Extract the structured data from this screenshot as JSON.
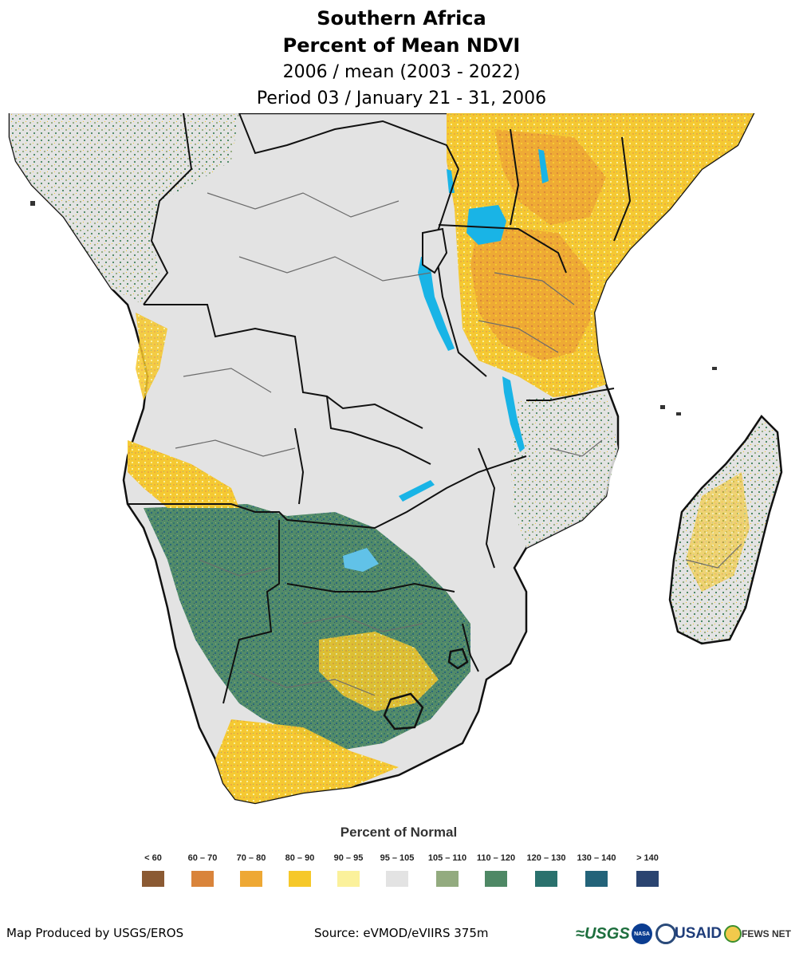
{
  "title": {
    "line1": "Southern Africa",
    "line2": "Percent of Mean NDVI",
    "line3": "2006 / mean (2003 - 2022)",
    "line4": "Period 03 / January 21 - 31, 2006"
  },
  "legend": {
    "title": "Percent of Normal",
    "items": [
      {
        "label": "< 60",
        "color": "#8b5a33"
      },
      {
        "label": "60 – 70",
        "color": "#d9843b"
      },
      {
        "label": "70 – 80",
        "color": "#eea834"
      },
      {
        "label": "80 – 90",
        "color": "#f6c829"
      },
      {
        "label": "90 – 95",
        "color": "#fbf19b"
      },
      {
        "label": "95 – 105",
        "color": "#e3e3e3"
      },
      {
        "label": "105 – 110",
        "color": "#93ab7f"
      },
      {
        "label": "110 – 120",
        "color": "#4e8865"
      },
      {
        "label": "120 – 130",
        "color": "#2a716d"
      },
      {
        "label": "130 – 140",
        "color": "#236379"
      },
      {
        "label": "> 140",
        "color": "#2a4470"
      }
    ]
  },
  "footer": {
    "produced_by": "Map Produced by USGS/EROS",
    "source": "Source: eVMOD/eVIIRS 375m"
  },
  "logos": {
    "usgs": "≈USGS",
    "nasa": "NASA",
    "usaid": "USAID",
    "fews": "FEWS NET"
  },
  "colors": {
    "ocean": "#ffffff",
    "land_normal": "#e3e3e3",
    "water": "#19b4e6",
    "border_country": "#111111",
    "border_admin": "#6b6b6b"
  }
}
